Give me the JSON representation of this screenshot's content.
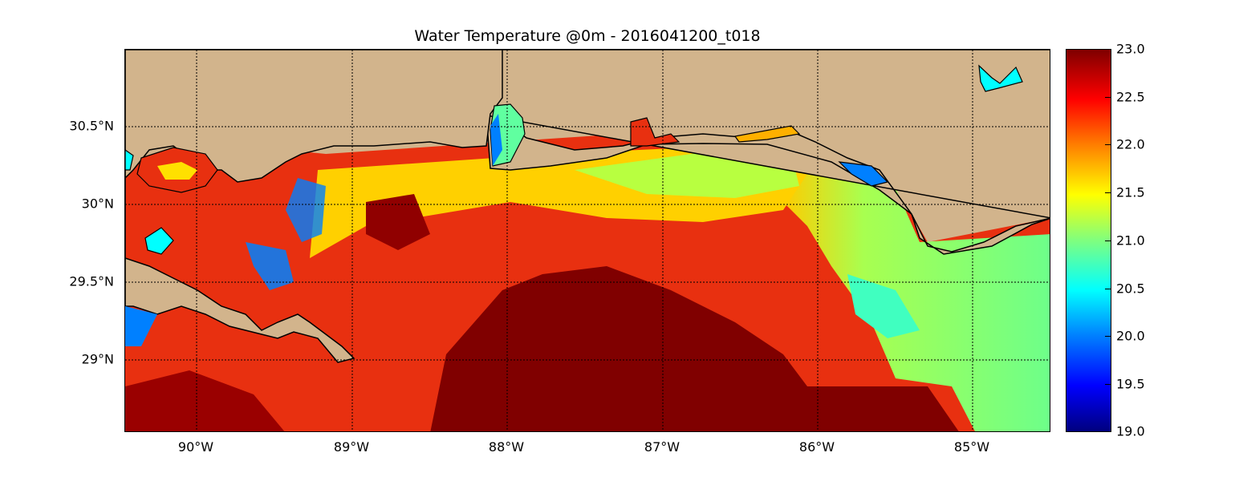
{
  "title": "Water Temperature @0m - 2016041200_t018",
  "map": {
    "lon_range": [
      -90.47,
      -84.5
    ],
    "lat_range": [
      28.55,
      31.0
    ],
    "land_color": "#d2b48c",
    "coastline_color": "#000000",
    "gridlines": "dotted"
  },
  "y_ticks": [
    {
      "value": 30.5,
      "label": "30.5°N"
    },
    {
      "value": 30.0,
      "label": "30°N"
    },
    {
      "value": 29.5,
      "label": "29.5°N"
    },
    {
      "value": 29.0,
      "label": "29°N"
    }
  ],
  "x_ticks": [
    {
      "value": -90,
      "label": "90°W"
    },
    {
      "value": -89,
      "label": "89°W"
    },
    {
      "value": -88,
      "label": "88°W"
    },
    {
      "value": -87,
      "label": "87°W"
    },
    {
      "value": -86,
      "label": "86°W"
    },
    {
      "value": -85,
      "label": "85°W"
    }
  ],
  "colorbar": {
    "colormap": "jet",
    "range": [
      19.0,
      23.0
    ],
    "ticks": [
      "23.0",
      "22.5",
      "22.0",
      "21.5",
      "21.0",
      "20.5",
      "20.0",
      "19.5",
      "19.0"
    ]
  }
}
